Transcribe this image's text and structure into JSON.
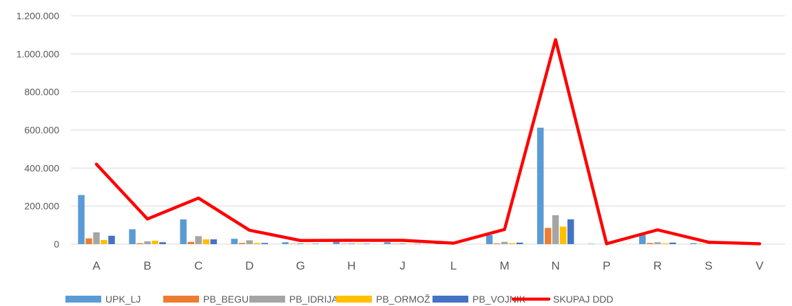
{
  "chart_data": {
    "type": "bar",
    "title": "",
    "xlabel": "",
    "ylabel": "",
    "ylim": [
      0,
      1200000
    ],
    "y_ticks": [
      0,
      200000,
      400000,
      600000,
      800000,
      1000000,
      1200000
    ],
    "y_tick_labels": [
      "0",
      "200.000",
      "400.000",
      "600.000",
      "800.000",
      "1.000.000",
      "1.200.000"
    ],
    "grid": true,
    "legend_position": "bottom",
    "categories": [
      "A",
      "B",
      "C",
      "D",
      "G",
      "H",
      "J",
      "L",
      "M",
      "N",
      "P",
      "R",
      "S",
      "V"
    ],
    "series": [
      {
        "name": "UPK_LJ",
        "kind": "bar",
        "color": "#5b9bd5",
        "values": [
          258000,
          78000,
          130000,
          28000,
          10000,
          12000,
          10000,
          3000,
          48000,
          612000,
          2000,
          48000,
          5000,
          1000
        ]
      },
      {
        "name": "PB_BEGUNJE",
        "kind": "bar",
        "color": "#ed7d31",
        "values": [
          30000,
          5000,
          12000,
          6000,
          2000,
          2000,
          2000,
          0,
          4000,
          85000,
          0,
          6000,
          1000,
          0
        ]
      },
      {
        "name": "PB_IDRIJA",
        "kind": "bar",
        "color": "#a5a5a5",
        "values": [
          62000,
          15000,
          42000,
          20000,
          4000,
          4000,
          4000,
          1000,
          12000,
          152000,
          0,
          10000,
          2000,
          0
        ]
      },
      {
        "name": "PB_ORMOŽ",
        "kind": "bar",
        "color": "#ffc000",
        "values": [
          22000,
          18000,
          25000,
          6000,
          2000,
          2000,
          2000,
          0,
          5000,
          92000,
          0,
          4000,
          1000,
          0
        ]
      },
      {
        "name": "PB_VOJNIK",
        "kind": "bar",
        "color": "#4472c4",
        "values": [
          44000,
          10000,
          25000,
          6000,
          2000,
          2000,
          2000,
          0,
          8000,
          130000,
          0,
          8000,
          1000,
          0
        ]
      },
      {
        "name": "SKUPAJ DDD",
        "kind": "line",
        "color": "#ff0000",
        "values": [
          420000,
          132000,
          242000,
          73000,
          19000,
          20000,
          20000,
          5000,
          77000,
          1075000,
          2000,
          75000,
          10000,
          2000
        ]
      }
    ]
  }
}
